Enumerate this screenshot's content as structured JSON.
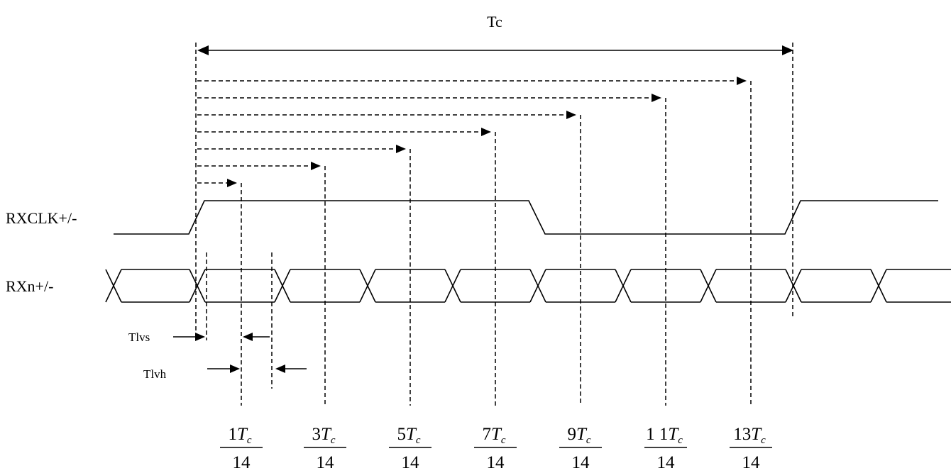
{
  "title_label": "Tc",
  "signals": {
    "clock": "RXCLK+/-",
    "data": "RXn+/-"
  },
  "timing": {
    "setup": "Tlvs",
    "hold": "Tlvh"
  },
  "strobes": [
    {
      "numerator": "1",
      "var": "T",
      "sub": "c",
      "denominator": "14"
    },
    {
      "numerator": "3",
      "var": "T",
      "sub": "c",
      "denominator": "14"
    },
    {
      "numerator": "5",
      "var": "T",
      "sub": "c",
      "denominator": "14"
    },
    {
      "numerator": "7",
      "var": "T",
      "sub": "c",
      "denominator": "14"
    },
    {
      "numerator": "9",
      "var": "T",
      "sub": "c",
      "denominator": "14"
    },
    {
      "numerator": "1 1",
      "var": "T",
      "sub": "c",
      "denominator": "14"
    },
    {
      "numerator": "13",
      "var": "T",
      "sub": "c",
      "denominator": "14"
    }
  ]
}
